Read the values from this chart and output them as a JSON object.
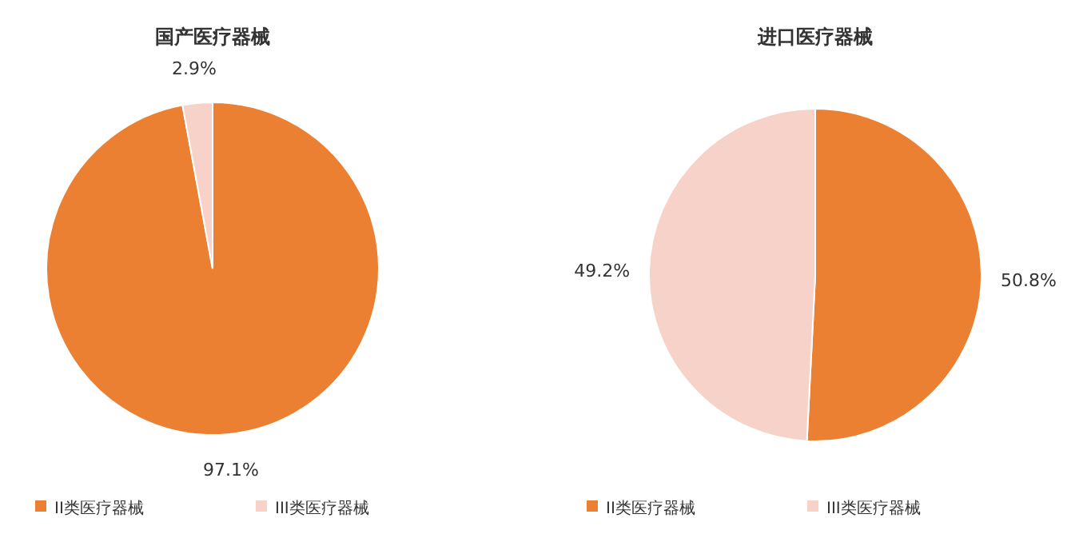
{
  "chart_data": [
    {
      "type": "pie",
      "title": "国产医疗器械",
      "categories": [
        "II类医疗器械",
        "III类医疗器械"
      ],
      "values": [
        97.1,
        2.9
      ],
      "colors": [
        "#eb7f32",
        "#f7d2c8"
      ],
      "value_labels": [
        "97.1%",
        "2.9%"
      ],
      "legend": "bottom"
    },
    {
      "type": "pie",
      "title": "进口医疗器械",
      "categories": [
        "II类医疗器械",
        "III类医疗器械"
      ],
      "values": [
        50.8,
        49.2
      ],
      "colors": [
        "#eb7f32",
        "#f7d2c8"
      ],
      "value_labels": [
        "50.8%",
        "49.2%"
      ],
      "legend": "bottom"
    }
  ]
}
